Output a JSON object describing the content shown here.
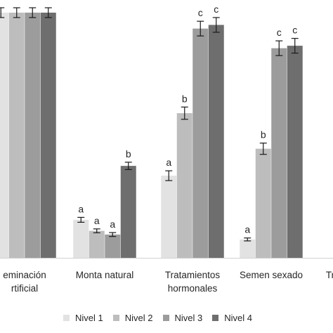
{
  "chart_data": {
    "type": "bar",
    "title": "",
    "xlabel": "",
    "ylabel": "",
    "grid": false,
    "legend_position": "bottom",
    "categories": [
      [
        "eminación",
        "rtificial"
      ],
      [
        "Monta natural"
      ],
      [
        "Tratamientos",
        "hormonales"
      ],
      [
        "Semen sexado"
      ],
      [
        "Tr"
      ]
    ],
    "series": [
      {
        "name": "Nivel 1",
        "color": "#e2e2e2",
        "values": [
          100,
          15.5,
          33.5,
          7.5,
          null
        ],
        "errors": [
          2,
          1,
          2,
          0.6,
          null
        ],
        "labels": [
          "",
          "a",
          "a",
          "a",
          ""
        ]
      },
      {
        "name": "Nivel 2",
        "color": "#bdbdbd",
        "values": [
          100,
          11,
          59,
          44.5,
          null
        ],
        "errors": [
          2,
          0.8,
          2.5,
          2.3,
          null
        ],
        "labels": [
          "",
          "a",
          "b",
          "b",
          ""
        ]
      },
      {
        "name": "Nivel 3",
        "color": "#9c9c9c",
        "values": [
          100,
          9.5,
          93.5,
          85.5,
          null
        ],
        "errors": [
          2,
          0.8,
          3,
          3,
          null
        ],
        "labels": [
          "",
          "a",
          "c",
          "c",
          ""
        ]
      },
      {
        "name": "Nivel 4",
        "color": "#6e6e6e",
        "values": [
          100,
          37.5,
          95,
          86.5,
          null
        ],
        "errors": [
          2,
          1.5,
          3,
          3,
          null
        ],
        "labels": [
          "",
          "b",
          "c",
          "c",
          ""
        ]
      }
    ],
    "ylim": [
      0,
      100
    ]
  }
}
